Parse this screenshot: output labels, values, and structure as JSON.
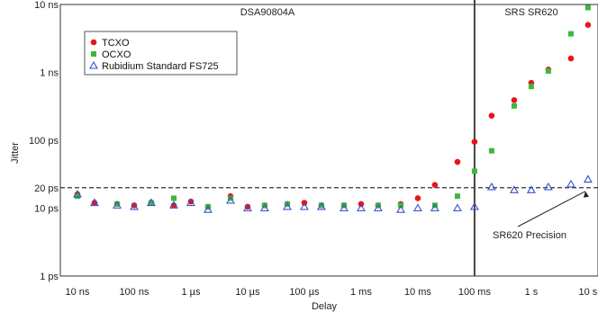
{
  "chart_data": {
    "type": "scatter",
    "xlabel": "Delay",
    "ylabel": "Jitter",
    "x_scale": "log",
    "y_scale": "log",
    "xlim": [
      "5 ns",
      "15 s"
    ],
    "ylim": [
      "1 ps",
      "10 ns"
    ],
    "x_ticks": [
      {
        "label": "10 ns",
        "seconds": 1e-08
      },
      {
        "label": "100 ns",
        "seconds": 1e-07
      },
      {
        "label": "1 µs",
        "seconds": 1e-06
      },
      {
        "label": "10 µs",
        "seconds": 1e-05
      },
      {
        "label": "100 µs",
        "seconds": 0.0001
      },
      {
        "label": "1 ms",
        "seconds": 0.001
      },
      {
        "label": "10 ms",
        "seconds": 0.01
      },
      {
        "label": "100 ms",
        "seconds": 0.1
      },
      {
        "label": "1 s",
        "seconds": 1
      },
      {
        "label": "10 s",
        "seconds": 10
      }
    ],
    "y_ticks": [
      {
        "label": "10 ns",
        "ps": 10000
      },
      {
        "label": "1 ns",
        "ps": 1000
      },
      {
        "label": "100 ps",
        "ps": 100
      },
      {
        "label": "20 ps",
        "ps": 20
      },
      {
        "label": "10 ps",
        "ps": 10
      },
      {
        "label": "1 ps",
        "ps": 1
      }
    ],
    "grid": true,
    "legend_position": "top-left",
    "sections": [
      {
        "label": "DSA90804A",
        "x_from_s": 5e-09,
        "x_to_s": 0.1
      },
      {
        "label": "SRS SR620",
        "x_from_s": 0.1,
        "x_to_s": 15
      }
    ],
    "divider_x_s": 0.1,
    "reference_line_ps": 20,
    "annotation": {
      "text": "SR620 Precision",
      "points_to": {
        "x_s": 3,
        "y_ps": 20
      }
    },
    "series": [
      {
        "name": "TCXO",
        "marker": "circle",
        "color": "#e8141c",
        "points": [
          [
            1e-08,
            16
          ],
          [
            2e-08,
            12
          ],
          [
            5e-08,
            11.5
          ],
          [
            1e-07,
            11
          ],
          [
            2e-07,
            12
          ],
          [
            5e-07,
            11
          ],
          [
            1e-06,
            12.5
          ],
          [
            2e-06,
            10.5
          ],
          [
            5e-06,
            15
          ],
          [
            1e-05,
            10.5
          ],
          [
            2e-05,
            11
          ],
          [
            5e-05,
            11.5
          ],
          [
            0.0001,
            12
          ],
          [
            0.0002,
            11
          ],
          [
            0.0005,
            11
          ],
          [
            0.001,
            11.5
          ],
          [
            0.002,
            11
          ],
          [
            0.005,
            11.5
          ],
          [
            0.01,
            14
          ],
          [
            0.02,
            22
          ],
          [
            0.05,
            48
          ],
          [
            0.1,
            95
          ],
          [
            0.2,
            230
          ],
          [
            0.5,
            390
          ],
          [
            1,
            700
          ],
          [
            2,
            1100
          ],
          [
            5,
            1600
          ],
          [
            10,
            5000
          ]
        ]
      },
      {
        "name": "OCXO",
        "marker": "square",
        "color": "#3cb83c",
        "points": [
          [
            1e-08,
            15
          ],
          [
            5e-08,
            11.5
          ],
          [
            2e-07,
            12
          ],
          [
            5e-07,
            14
          ],
          [
            2e-06,
            10.5
          ],
          [
            5e-06,
            14
          ],
          [
            2e-05,
            11
          ],
          [
            5e-05,
            11.5
          ],
          [
            0.0002,
            11
          ],
          [
            0.0005,
            11
          ],
          [
            0.002,
            11
          ],
          [
            0.005,
            11
          ],
          [
            0.02,
            11
          ],
          [
            0.05,
            15
          ],
          [
            0.1,
            35
          ],
          [
            0.2,
            70
          ],
          [
            0.5,
            320
          ],
          [
            1,
            620
          ],
          [
            2,
            1050
          ],
          [
            5,
            3700
          ],
          [
            10,
            9000
          ]
        ]
      },
      {
        "name": "Rubidium Standard FS725",
        "marker": "triangle",
        "color": "#3a50c8",
        "points": [
          [
            1e-08,
            16
          ],
          [
            2e-08,
            12
          ],
          [
            5e-08,
            11
          ],
          [
            1e-07,
            10.5
          ],
          [
            2e-07,
            12
          ],
          [
            5e-07,
            11
          ],
          [
            1e-06,
            12
          ],
          [
            2e-06,
            9.5
          ],
          [
            5e-06,
            13
          ],
          [
            1e-05,
            10
          ],
          [
            2e-05,
            10
          ],
          [
            5e-05,
            10.5
          ],
          [
            0.0001,
            10.5
          ],
          [
            0.0002,
            10.5
          ],
          [
            0.0005,
            10
          ],
          [
            0.001,
            10
          ],
          [
            0.002,
            10
          ],
          [
            0.005,
            9.5
          ],
          [
            0.01,
            10
          ],
          [
            0.02,
            10
          ],
          [
            0.05,
            10
          ],
          [
            0.1,
            10.5
          ],
          [
            0.2,
            20.5
          ],
          [
            0.5,
            18.5
          ],
          [
            1,
            18.5
          ],
          [
            2,
            20.5
          ],
          [
            5,
            22.5
          ],
          [
            10,
            26.5
          ]
        ]
      }
    ]
  }
}
